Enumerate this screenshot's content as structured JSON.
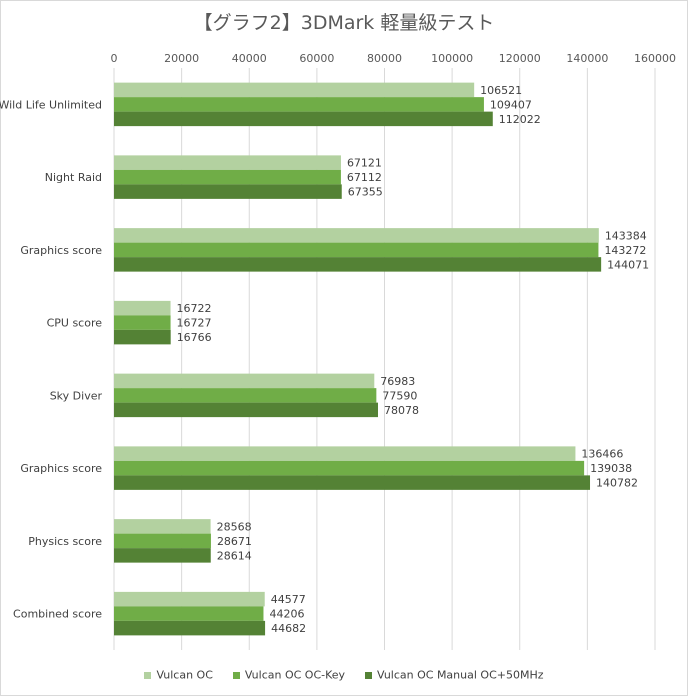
{
  "chart_data": {
    "type": "bar",
    "orientation": "horizontal",
    "title": "【グラフ2】3DMark 軽量級テスト",
    "xlim": [
      0,
      160000
    ],
    "ticks": [
      "0",
      "20000",
      "40000",
      "60000",
      "80000",
      "100000",
      "120000",
      "140000",
      "160000"
    ],
    "grid": true,
    "legend_position": "bottom",
    "categories": [
      "Wild Life Unlimited",
      "Night Raid",
      "Graphics score",
      "CPU score",
      "Sky Diver",
      "Graphics score",
      "Physics score",
      "Combined score"
    ],
    "series": [
      {
        "name": "Vulcan OC",
        "color": "#b3d1a0",
        "values": [
          106521,
          67121,
          143384,
          16722,
          76983,
          136466,
          28568,
          44577
        ]
      },
      {
        "name": "Vulcan OC OC-Key",
        "color": "#70ad47",
        "values": [
          109407,
          67112,
          143272,
          16727,
          77590,
          139038,
          28671,
          44206
        ]
      },
      {
        "name": "Vulcan OC Manual OC+50MHz",
        "color": "#548235",
        "values": [
          112022,
          67355,
          144071,
          16766,
          78078,
          140782,
          28614,
          44682
        ]
      }
    ]
  }
}
